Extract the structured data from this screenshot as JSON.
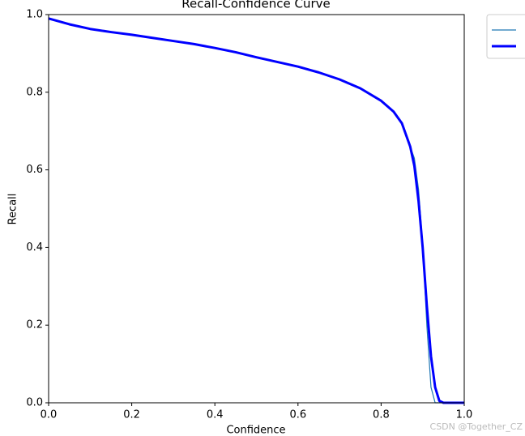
{
  "chart_data": {
    "type": "line",
    "title": "Recall-Confidence Curve",
    "x_label": "Confidence",
    "y_label": "Recall",
    "watermark": "CSDN @Together_CZ",
    "x": [
      0,
      0.05,
      0.1,
      0.15,
      0.2,
      0.25,
      0.3,
      0.35,
      0.4,
      0.45,
      0.5,
      0.55,
      0.6,
      0.65,
      0.7,
      0.75,
      0.8,
      0.83,
      0.85,
      0.87,
      0.88,
      0.89,
      0.9,
      0.91,
      0.92,
      0.93,
      0.94,
      0.95,
      1.0
    ],
    "series": [
      {
        "color": "#1f77b4",
        "width": 1.2,
        "values": [
          0.99,
          0.975,
          0.963,
          0.955,
          0.948,
          0.94,
          0.932,
          0.924,
          0.914,
          0.903,
          0.89,
          0.878,
          0.866,
          0.851,
          0.833,
          0.81,
          0.778,
          0.75,
          0.72,
          0.66,
          0.63,
          0.55,
          0.41,
          0.2,
          0.04,
          0,
          0,
          0,
          0
        ]
      },
      {
        "color": "#0000ff",
        "width": 3,
        "values": [
          0.99,
          0.975,
          0.963,
          0.955,
          0.948,
          0.94,
          0.932,
          0.924,
          0.914,
          0.903,
          0.89,
          0.878,
          0.866,
          0.851,
          0.833,
          0.81,
          0.778,
          0.75,
          0.72,
          0.66,
          0.61,
          0.52,
          0.4,
          0.25,
          0.12,
          0.04,
          0.005,
          0,
          0
        ]
      }
    ],
    "xlim": [
      0,
      1
    ],
    "ylim": [
      0,
      1
    ],
    "xticks": [
      {
        "value": 0,
        "label": "0.0"
      },
      0.2,
      0.4,
      0.6,
      0.8,
      {
        "value": 1,
        "label": "1.0"
      }
    ],
    "yticks": [
      {
        "value": 0,
        "label": "0.0"
      },
      0.2,
      0.4,
      0.6,
      0.8,
      {
        "value": 1,
        "label": "1.0"
      }
    ],
    "grid": false
  }
}
